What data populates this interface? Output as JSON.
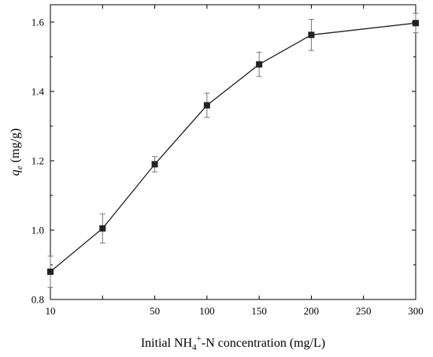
{
  "chart_data": {
    "type": "line",
    "title": "",
    "xlabel": "Initial NH4+-N concentration (mg/L)",
    "xlabel_parts": {
      "prefix": "Initial NH",
      "sub": "4",
      "sup": "+",
      "suffix": "-N concentration (mg/L)"
    },
    "ylabel": "qe (mg/g)",
    "ylabel_parts": {
      "symbol": "q",
      "sub": "e",
      "unit": " (mg/g)"
    },
    "x_categories": [
      "10",
      "20",
      "50",
      "100",
      "150",
      "200",
      "250",
      "300"
    ],
    "x_tick_labels": [
      "10",
      "50",
      "100",
      "150",
      "200",
      "250",
      "300"
    ],
    "yticks": [
      "0.8",
      "1.0",
      "1.2",
      "1.4",
      "1.6"
    ],
    "ylim": [
      0.8,
      1.65
    ],
    "grid": false,
    "legend": "none",
    "series": [
      {
        "marker": "square",
        "color": "#222222",
        "points": [
          {
            "x": "10",
            "y": 0.88,
            "err": 0.045
          },
          {
            "x": "20",
            "y": 1.005,
            "err": 0.042
          },
          {
            "x": "50",
            "y": 1.19,
            "err": 0.022
          },
          {
            "x": "100",
            "y": 1.36,
            "err": 0.035
          },
          {
            "x": "150",
            "y": 1.478,
            "err": 0.035
          },
          {
            "x": "200",
            "y": 1.563,
            "err": 0.045
          },
          {
            "x": "300",
            "y": 1.597,
            "err": 0.028
          }
        ]
      }
    ]
  }
}
